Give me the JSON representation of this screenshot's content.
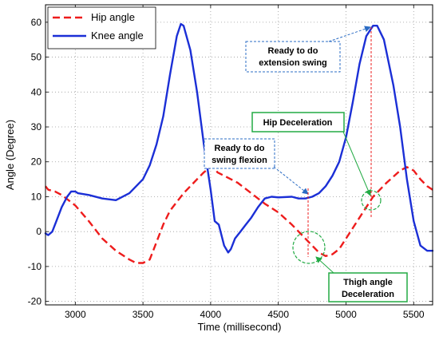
{
  "chart_data": {
    "type": "line",
    "xlabel": "Time (millisecond)",
    "ylabel": "Angle (Degree)",
    "xlim": [
      2780,
      5640
    ],
    "ylim": [
      -21,
      65
    ],
    "xticks": [
      3000,
      3500,
      4000,
      4500,
      5000,
      5500
    ],
    "yticks": [
      -20,
      -10,
      0,
      10,
      20,
      30,
      40,
      50,
      60
    ],
    "grid": true,
    "legend_position": "top-left",
    "series": [
      {
        "name": "Hip angle",
        "color": "#ee1c1c",
        "style": "dashed",
        "points": [
          [
            2780,
            13
          ],
          [
            2800,
            12
          ],
          [
            2850,
            11.5
          ],
          [
            2900,
            10.5
          ],
          [
            2950,
            9
          ],
          [
            3000,
            7.5
          ],
          [
            3100,
            3
          ],
          [
            3200,
            -2
          ],
          [
            3300,
            -5.5
          ],
          [
            3400,
            -8
          ],
          [
            3450,
            -9
          ],
          [
            3500,
            -9
          ],
          [
            3550,
            -8
          ],
          [
            3600,
            -3
          ],
          [
            3650,
            2
          ],
          [
            3700,
            6
          ],
          [
            3800,
            11
          ],
          [
            3900,
            15
          ],
          [
            3950,
            17
          ],
          [
            4000,
            18.5
          ],
          [
            4020,
            18.8
          ],
          [
            4050,
            17
          ],
          [
            4100,
            16
          ],
          [
            4150,
            15
          ],
          [
            4200,
            14
          ],
          [
            4300,
            11
          ],
          [
            4400,
            8
          ],
          [
            4500,
            5.5
          ],
          [
            4600,
            2
          ],
          [
            4700,
            -2
          ],
          [
            4750,
            -4
          ],
          [
            4800,
            -6
          ],
          [
            4850,
            -7
          ],
          [
            4900,
            -6.5
          ],
          [
            4950,
            -5
          ],
          [
            5000,
            -2
          ],
          [
            5100,
            4
          ],
          [
            5200,
            10
          ],
          [
            5300,
            14
          ],
          [
            5400,
            17.5
          ],
          [
            5450,
            18.5
          ],
          [
            5500,
            17.5
          ],
          [
            5550,
            15
          ],
          [
            5600,
            13
          ],
          [
            5640,
            12
          ]
        ]
      },
      {
        "name": "Knee angle",
        "color": "#1b2fd6",
        "style": "solid",
        "points": [
          [
            2780,
            -0.5
          ],
          [
            2800,
            -1
          ],
          [
            2830,
            0
          ],
          [
            2860,
            3
          ],
          [
            2900,
            7
          ],
          [
            2940,
            10
          ],
          [
            2970,
            11.5
          ],
          [
            3000,
            11.5
          ],
          [
            3020,
            11
          ],
          [
            3100,
            10.5
          ],
          [
            3200,
            9.5
          ],
          [
            3300,
            9
          ],
          [
            3400,
            11
          ],
          [
            3500,
            15
          ],
          [
            3550,
            19
          ],
          [
            3600,
            25
          ],
          [
            3650,
            33
          ],
          [
            3700,
            45
          ],
          [
            3750,
            56
          ],
          [
            3780,
            59.5
          ],
          [
            3800,
            59
          ],
          [
            3850,
            52
          ],
          [
            3900,
            40
          ],
          [
            3950,
            25
          ],
          [
            4000,
            12
          ],
          [
            4030,
            3
          ],
          [
            4060,
            2
          ],
          [
            4100,
            -4
          ],
          [
            4130,
            -6
          ],
          [
            4150,
            -5
          ],
          [
            4180,
            -2
          ],
          [
            4220,
            0
          ],
          [
            4260,
            2
          ],
          [
            4300,
            4
          ],
          [
            4350,
            7
          ],
          [
            4400,
            9.5
          ],
          [
            4450,
            10
          ],
          [
            4500,
            9.8
          ],
          [
            4600,
            10
          ],
          [
            4650,
            9.5
          ],
          [
            4700,
            9.5
          ],
          [
            4750,
            10
          ],
          [
            4800,
            11
          ],
          [
            4850,
            13
          ],
          [
            4900,
            16
          ],
          [
            4950,
            20
          ],
          [
            5000,
            27
          ],
          [
            5050,
            37
          ],
          [
            5100,
            48
          ],
          [
            5150,
            56
          ],
          [
            5200,
            59
          ],
          [
            5230,
            59
          ],
          [
            5280,
            55
          ],
          [
            5350,
            42
          ],
          [
            5400,
            30
          ],
          [
            5450,
            15
          ],
          [
            5500,
            3
          ],
          [
            5550,
            -4
          ],
          [
            5600,
            -5.5
          ],
          [
            5640,
            -5.5
          ]
        ]
      }
    ],
    "annotations": [
      {
        "lines": [
          "Ready to do",
          "extension swing"
        ],
        "style": "dashed-box"
      },
      {
        "lines": [
          "Hip Deceleration"
        ],
        "style": "solid-green-box"
      },
      {
        "lines": [
          "Ready to do",
          "swing flexion"
        ],
        "style": "dashed-box"
      },
      {
        "lines": [
          "Thigh angle",
          "Deceleration"
        ],
        "style": "solid-green-box"
      }
    ]
  }
}
